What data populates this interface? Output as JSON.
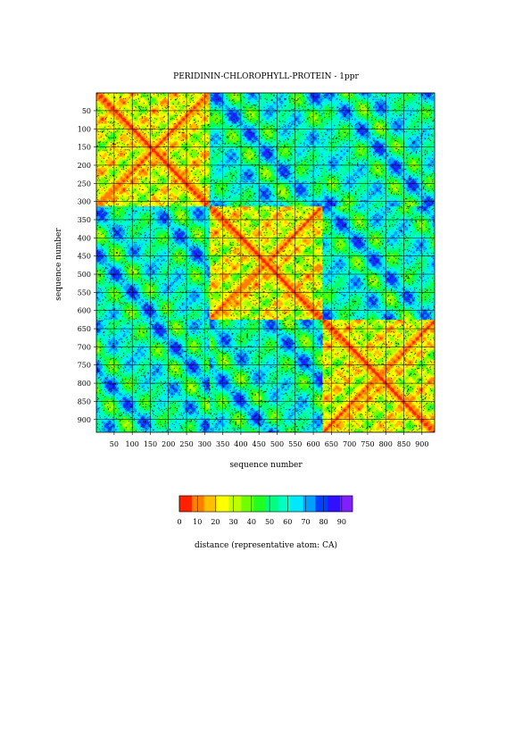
{
  "chart_data": {
    "type": "heatmap",
    "title": "PERIDININ-CHLOROPHYLL-PROTEIN - 1ppr",
    "xlabel": "sequence number",
    "ylabel": "sequence number",
    "x_ticks": [
      50,
      100,
      150,
      200,
      250,
      300,
      350,
      400,
      450,
      500,
      550,
      600,
      650,
      700,
      750,
      800,
      850,
      900
    ],
    "y_ticks": [
      50,
      100,
      150,
      200,
      250,
      300,
      350,
      400,
      450,
      500,
      550,
      600,
      650,
      700,
      750,
      800,
      850,
      900
    ],
    "xlim": [
      1,
      935
    ],
    "ylim": [
      1,
      935
    ],
    "y_inverted": true,
    "grid": true,
    "domain_boundaries": [
      312,
      624
    ],
    "diagonal_distance": 0,
    "colorbar": {
      "label": "distance (representative atom: CA)",
      "ticks": [
        0,
        10,
        20,
        30,
        40,
        50,
        60,
        70,
        80,
        90
      ],
      "range": [
        0,
        96
      ],
      "colors": [
        "#ff2000",
        "#ff8000",
        "#ffc000",
        "#ffff00",
        "#c0ff00",
        "#70ff00",
        "#20ff20",
        "#00ff80",
        "#00ffc0",
        "#00e8ff",
        "#00a0ff",
        "#0040ff",
        "#3010ff",
        "#8020ff"
      ]
    }
  }
}
